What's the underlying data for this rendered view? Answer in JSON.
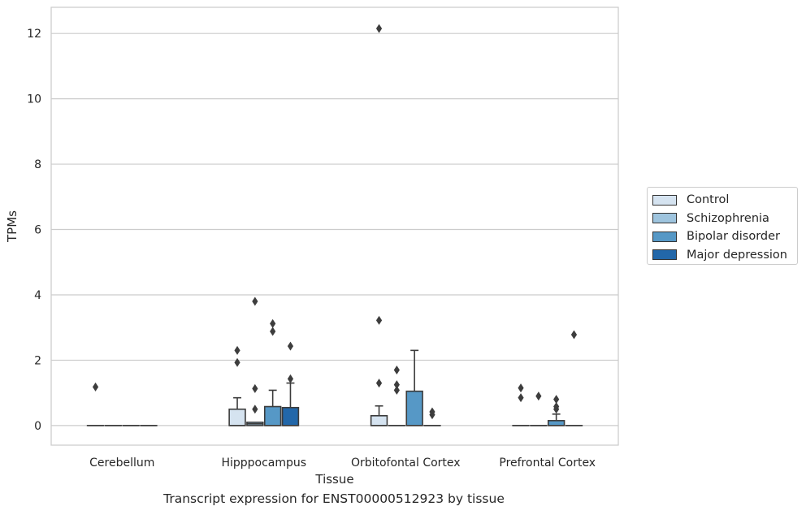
{
  "chart_data": {
    "type": "box",
    "title": "",
    "caption": "Transcript expression for ENST00000512923 by tissue",
    "xlabel": "Tissue",
    "ylabel": "TPMs",
    "ylim": [
      -0.6,
      12.8
    ],
    "yticks": [
      "0",
      "2",
      "4",
      "6",
      "8",
      "10",
      "12"
    ],
    "grid": "horizontal",
    "legend_position": "right",
    "categories": [
      "Cerebellum",
      "Hipppocampus",
      "Orbitofontal Cortex",
      "Prefrontal Cortex"
    ],
    "series": [
      {
        "name": "Control",
        "color": "#d5e3f0"
      },
      {
        "name": "Schizophrenia",
        "color": "#9ec4de"
      },
      {
        "name": "Bipolar disorder",
        "color": "#5698c6"
      },
      {
        "name": "Major depression",
        "color": "#2267a9"
      }
    ],
    "boxes": [
      {
        "category": "Cerebellum",
        "series": "Control",
        "q1": 0,
        "median": 0,
        "q3": 0,
        "whisker_low": 0,
        "whisker_high": 0,
        "outliers": [
          1.18
        ]
      },
      {
        "category": "Cerebellum",
        "series": "Schizophrenia",
        "q1": 0,
        "median": 0,
        "q3": 0,
        "whisker_low": 0,
        "whisker_high": 0,
        "outliers": []
      },
      {
        "category": "Cerebellum",
        "series": "Bipolar disorder",
        "q1": 0,
        "median": 0,
        "q3": 0,
        "whisker_low": 0,
        "whisker_high": 0,
        "outliers": []
      },
      {
        "category": "Cerebellum",
        "series": "Major depression",
        "q1": 0,
        "median": 0,
        "q3": 0,
        "whisker_low": 0,
        "whisker_high": 0,
        "outliers": []
      },
      {
        "category": "Hipppocampus",
        "series": "Control",
        "q1": 0,
        "median": 0,
        "q3": 0.5,
        "whisker_low": 0,
        "whisker_high": 0.85,
        "outliers": [
          1.93,
          2.3
        ]
      },
      {
        "category": "Hipppocampus",
        "series": "Schizophrenia",
        "q1": 0,
        "median": 0.05,
        "q3": 0.1,
        "whisker_low": 0,
        "whisker_high": 0.1,
        "outliers": [
          0.5,
          1.13,
          3.8
        ]
      },
      {
        "category": "Hipppocampus",
        "series": "Bipolar disorder",
        "q1": 0,
        "median": 0,
        "q3": 0.58,
        "whisker_low": 0,
        "whisker_high": 1.08,
        "outliers": [
          2.88,
          3.12
        ]
      },
      {
        "category": "Hipppocampus",
        "series": "Major depression",
        "q1": 0,
        "median": 0,
        "q3": 0.55,
        "whisker_low": 0,
        "whisker_high": 1.3,
        "outliers": [
          1.43,
          2.43
        ]
      },
      {
        "category": "Orbitofontal Cortex",
        "series": "Control",
        "q1": 0,
        "median": 0,
        "q3": 0.3,
        "whisker_low": 0,
        "whisker_high": 0.6,
        "outliers": [
          1.3,
          3.22,
          12.15
        ]
      },
      {
        "category": "Orbitofontal Cortex",
        "series": "Schizophrenia",
        "q1": 0,
        "median": 0,
        "q3": 0,
        "whisker_low": 0,
        "whisker_high": 0,
        "outliers": [
          1.08,
          1.25,
          1.7
        ]
      },
      {
        "category": "Orbitofontal Cortex",
        "series": "Bipolar disorder",
        "q1": 0,
        "median": 0,
        "q3": 1.05,
        "whisker_low": 0,
        "whisker_high": 2.3,
        "outliers": []
      },
      {
        "category": "Orbitofontal Cortex",
        "series": "Major depression",
        "q1": 0,
        "median": 0,
        "q3": 0,
        "whisker_low": 0,
        "whisker_high": 0,
        "outliers": [
          0.33,
          0.42
        ]
      },
      {
        "category": "Prefrontal Cortex",
        "series": "Control",
        "q1": 0,
        "median": 0,
        "q3": 0,
        "whisker_low": 0,
        "whisker_high": 0,
        "outliers": [
          0.85,
          1.15
        ]
      },
      {
        "category": "Prefrontal Cortex",
        "series": "Schizophrenia",
        "q1": 0,
        "median": 0,
        "q3": 0,
        "whisker_low": 0,
        "whisker_high": 0,
        "outliers": [
          0.9
        ]
      },
      {
        "category": "Prefrontal Cortex",
        "series": "Bipolar disorder",
        "q1": 0,
        "median": 0,
        "q3": 0.15,
        "whisker_low": 0,
        "whisker_high": 0.35,
        "outliers": [
          0.5,
          0.58,
          0.8
        ]
      },
      {
        "category": "Prefrontal Cortex",
        "series": "Major depression",
        "q1": 0,
        "median": 0,
        "q3": 0,
        "whisker_low": 0,
        "whisker_high": 0,
        "outliers": [
          2.78
        ]
      }
    ]
  }
}
